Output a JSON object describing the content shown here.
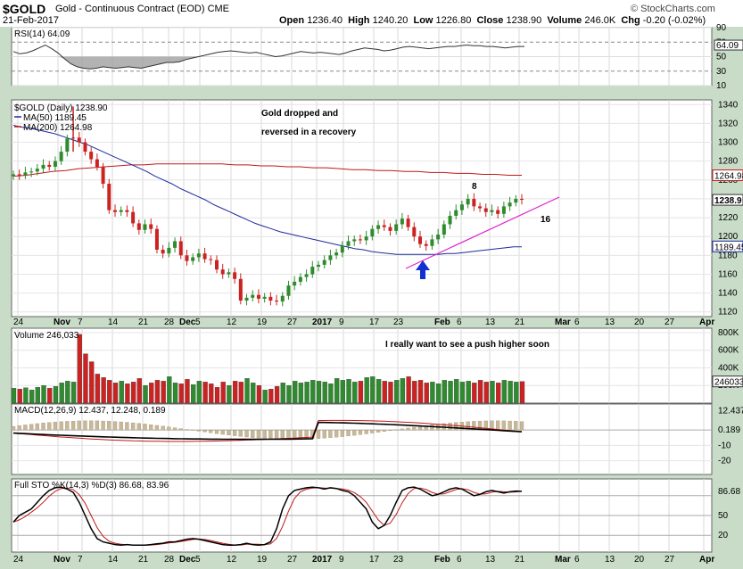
{
  "header": {
    "symbol": "$GOLD",
    "description": "Gold - Continuous Contract (EOD)  CME",
    "date": "21-Feb-2017",
    "open_label": "Open",
    "open": "1236.40",
    "high_label": "High",
    "high": "1240.20",
    "low_label": "Low",
    "low": "1226.80",
    "close_label": "Close",
    "close": "1238.90",
    "volume_label": "Volume",
    "volume": "246.0K",
    "chg_label": "Chg",
    "chg": "-0.20 (-0.02%)",
    "brand": "© StockCharts.com"
  },
  "colors": {
    "up": "#2e8b2e",
    "down": "#cc2222",
    "ma50": "#1a2b9a",
    "ma200": "#c01818",
    "panel_bg": "#ffffff",
    "outer_bg": "#c8dcc8",
    "annotation_pink": "#e020d0",
    "annotation_blue": "#1a28c8",
    "rsi_fill": "#a0a0a0",
    "macd_hist": "#c8b89a",
    "trendline": "#e020d0",
    "arrow": "#1030d0"
  },
  "chart_data": [
    {
      "type": "line",
      "panel": "RSI",
      "label": "RSI(14) 64.09",
      "ylim": [
        10,
        90
      ],
      "ticks": [
        "90",
        "70",
        "50",
        "30",
        "10"
      ],
      "last_value_label": "64.09",
      "values": [
        57,
        54,
        55,
        58,
        62,
        66,
        61,
        55,
        47,
        40,
        36,
        34,
        33,
        34,
        36,
        35,
        34,
        35,
        36,
        35,
        34,
        36,
        38,
        40,
        42,
        42,
        43,
        46,
        48,
        50,
        52,
        54,
        56,
        57,
        58,
        57,
        56,
        55,
        56,
        54,
        52,
        50,
        51,
        53,
        55,
        57,
        56,
        55,
        56,
        55,
        54,
        53,
        55,
        58,
        60,
        62,
        61,
        60,
        58,
        59,
        61,
        63,
        64,
        63,
        62,
        61,
        62,
        63,
        64,
        64,
        65,
        66,
        65,
        65,
        64,
        64,
        63,
        62,
        63,
        64,
        64
      ]
    },
    {
      "type": "candlestick",
      "panel": "Price",
      "label": "$GOLD (Daily) 1238.90",
      "ma50_label": "MA(50) 1189.45",
      "ma200_label": "MA(200) 1264.98",
      "ylim": [
        1115,
        1345
      ],
      "ticks": [
        "1340",
        "1320",
        "1300",
        "1280",
        "1260",
        "1240",
        "1220",
        "1200",
        "1180",
        "1160",
        "1140",
        "1120"
      ],
      "price_tags": [
        "1264.98",
        "1238.9",
        "1189.45"
      ],
      "x_labels": [
        "24",
        "Nov",
        "7",
        "14",
        "21",
        "28",
        "Dec",
        "5",
        "12",
        "19",
        "27",
        "2017",
        "9",
        "17",
        "23",
        "Feb",
        "6",
        "13",
        "21",
        "Mar",
        "6",
        "13",
        "20",
        "27",
        "Apr"
      ],
      "closes": [
        1266,
        1265,
        1268,
        1269,
        1272,
        1276,
        1274,
        1280,
        1290,
        1304,
        1305,
        1300,
        1290,
        1282,
        1274,
        1256,
        1228,
        1226,
        1228,
        1226,
        1214,
        1207,
        1213,
        1208,
        1186,
        1182,
        1188,
        1195,
        1180,
        1174,
        1178,
        1182,
        1176,
        1175,
        1165,
        1160,
        1162,
        1155,
        1132,
        1135,
        1138,
        1134,
        1136,
        1132,
        1131,
        1137,
        1148,
        1152,
        1157,
        1160,
        1168,
        1170,
        1175,
        1180,
        1183,
        1190,
        1195,
        1197,
        1196,
        1200,
        1208,
        1212,
        1210,
        1206,
        1213,
        1219,
        1210,
        1200,
        1192,
        1190,
        1197,
        1202,
        1213,
        1222,
        1228,
        1234,
        1240,
        1232,
        1230,
        1226,
        1228,
        1224,
        1232,
        1236,
        1240,
        1239
      ],
      "ma50": [
        1318,
        1316,
        1315,
        1313,
        1311,
        1309,
        1306,
        1303,
        1300,
        1297,
        1293,
        1289,
        1285,
        1281,
        1277,
        1273,
        1269,
        1264,
        1260,
        1256,
        1251,
        1247,
        1243,
        1239,
        1234,
        1230,
        1226,
        1222,
        1218,
        1214,
        1211,
        1208,
        1205,
        1203,
        1201,
        1199,
        1197,
        1195,
        1193,
        1191,
        1189,
        1187,
        1186,
        1184,
        1183,
        1182,
        1181,
        1181,
        1181,
        1181,
        1181,
        1181,
        1182,
        1182,
        1183,
        1184,
        1185,
        1186,
        1187,
        1188,
        1189,
        1189
      ],
      "ma200": [
        1264,
        1265,
        1267,
        1269,
        1270,
        1272,
        1273,
        1274,
        1275,
        1276,
        1276,
        1277,
        1277,
        1277,
        1277,
        1277,
        1277,
        1276,
        1276,
        1275,
        1275,
        1274,
        1274,
        1273,
        1273,
        1272,
        1271,
        1271,
        1270,
        1270,
        1269,
        1269,
        1268,
        1268,
        1267,
        1267,
        1266,
        1266,
        1265,
        1265
      ],
      "annotations": [
        "Gold dropped and",
        "reversed in a recovery",
        "8",
        "16"
      ]
    },
    {
      "type": "bar",
      "panel": "Volume",
      "label": "Volume 246,033",
      "ticks": [
        "800K",
        "600K",
        "400K",
        "200K"
      ],
      "last_value_label": "246033",
      "annotation": "I really want to see a push higher soon"
    },
    {
      "type": "line",
      "panel": "MACD",
      "label": "MACD(12,26,9) 12.437, 12.248, 0.189",
      "ticks": [
        "12.437",
        "0.189",
        "-10",
        "-20"
      ],
      "macd_label": "MACD(12,26,9)",
      "macd_value": "12.437",
      "signal_value": "12.248",
      "hist_value": "0.189"
    },
    {
      "type": "line",
      "panel": "Stochastics",
      "label": "Full STO %K(14,3) %D(3) 86.68, 83.96",
      "ticks": [
        "86.68",
        "50",
        "20"
      ],
      "k_label": "Full STO %K(14,3) %D(3)",
      "k_value": "86.68",
      "d_value": "83.96"
    }
  ],
  "annotation_top": "Gold dropped and",
  "annotation_top2": "reversed in a recovery",
  "annotation_vol": "I really want to see a push higher soon",
  "annotation_8": "8",
  "annotation_16": "16",
  "axis_labels": [
    "24",
    "Nov",
    "7",
    "14",
    "21",
    "28",
    "Dec",
    "5",
    "12",
    "19",
    "27",
    "2017",
    "9",
    "17",
    "23",
    "Feb",
    "6",
    "13",
    "21",
    "Mar",
    "6",
    "13",
    "20",
    "27",
    "Apr"
  ]
}
